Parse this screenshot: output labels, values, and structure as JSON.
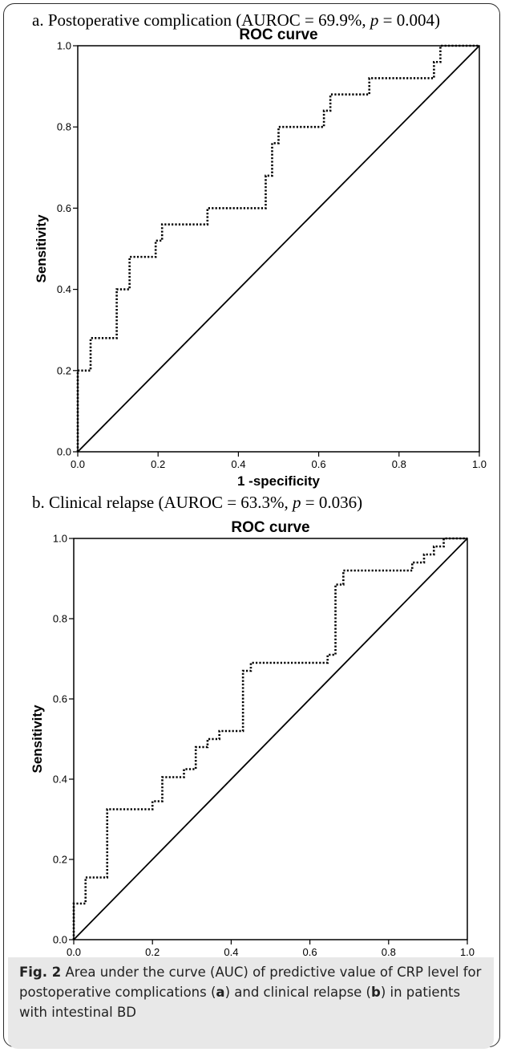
{
  "chart_data": [
    {
      "type": "line",
      "panel_title": {
        "prefix": "a. Postoperative complication (AUROC = 69.9%, ",
        "p_symbol": "p",
        "suffix": " = 0.004)"
      },
      "title": "ROC curve",
      "xlabel": "1 -specificity",
      "ylabel": "Sensitivity",
      "xlim": [
        0,
        1
      ],
      "ylim": [
        0,
        1
      ],
      "xticks": [
        "0.0",
        "0.2",
        "0.4",
        "0.6",
        "0.8",
        "1.0"
      ],
      "yticks": [
        "0.0",
        "0.2",
        "0.4",
        "0.6",
        "0.8",
        "1.0"
      ],
      "grid": false,
      "series": [
        {
          "style": "dotted",
          "x": [
            0.0,
            0.0,
            0.032,
            0.032,
            0.097,
            0.097,
            0.129,
            0.129,
            0.194,
            0.194,
            0.21,
            0.21,
            0.323,
            0.323,
            0.468,
            0.468,
            0.484,
            0.484,
            0.5,
            0.5,
            0.516,
            0.516,
            0.613,
            0.613,
            0.629,
            0.629,
            0.645,
            0.645,
            0.726,
            0.726,
            0.887,
            0.887,
            0.903,
            0.903,
            1.0
          ],
          "y": [
            0.0,
            0.2,
            0.2,
            0.28,
            0.28,
            0.4,
            0.4,
            0.48,
            0.48,
            0.52,
            0.52,
            0.56,
            0.56,
            0.6,
            0.6,
            0.68,
            0.68,
            0.76,
            0.76,
            0.8,
            0.8,
            0.8,
            0.8,
            0.84,
            0.84,
            0.88,
            0.88,
            0.88,
            0.88,
            0.92,
            0.92,
            0.96,
            0.96,
            1.0,
            1.0
          ]
        },
        {
          "style": "solid",
          "x": [
            0,
            1
          ],
          "y": [
            0,
            1
          ]
        }
      ]
    },
    {
      "type": "line",
      "panel_title": {
        "prefix": "b. Clinical relapse (AUROC = 63.3%, ",
        "p_symbol": "p",
        "suffix": " = 0.036)"
      },
      "title": "ROC curve",
      "xlabel": "1-Specificity",
      "ylabel": "Sensitivity",
      "xlim": [
        0,
        1
      ],
      "ylim": [
        0,
        1
      ],
      "xticks": [
        "0.0",
        "0.2",
        "0.4",
        "0.6",
        "0.8",
        "1.0"
      ],
      "yticks": [
        "0.0",
        "0.2",
        "0.4",
        "0.6",
        "0.8",
        "1.0"
      ],
      "grid": false,
      "series": [
        {
          "style": "dotted",
          "x": [
            0.0,
            0.0,
            0.03,
            0.03,
            0.085,
            0.085,
            0.2,
            0.2,
            0.225,
            0.225,
            0.28,
            0.28,
            0.31,
            0.31,
            0.34,
            0.34,
            0.37,
            0.37,
            0.43,
            0.43,
            0.45,
            0.45,
            0.645,
            0.645,
            0.665,
            0.665,
            0.685,
            0.685,
            0.86,
            0.86,
            0.89,
            0.89,
            0.915,
            0.915,
            0.94,
            0.94,
            1.0
          ],
          "y": [
            0.0,
            0.09,
            0.09,
            0.155,
            0.155,
            0.325,
            0.325,
            0.345,
            0.345,
            0.405,
            0.405,
            0.425,
            0.425,
            0.48,
            0.48,
            0.5,
            0.5,
            0.52,
            0.52,
            0.67,
            0.67,
            0.69,
            0.69,
            0.71,
            0.71,
            0.885,
            0.885,
            0.92,
            0.92,
            0.94,
            0.94,
            0.96,
            0.96,
            0.98,
            0.98,
            1.0,
            1.0
          ]
        },
        {
          "style": "solid",
          "x": [
            0,
            1
          ],
          "y": [
            0,
            1
          ]
        }
      ]
    }
  ],
  "caption": {
    "fig_label": "Fig. 2",
    "part1": "  Area under the curve (AUC) of predictive value of CRP level for postoperative complications (",
    "a": "a",
    "part2": ") and clinical relapse (",
    "b": "b",
    "part3": ") in patients with intestinal BD"
  }
}
